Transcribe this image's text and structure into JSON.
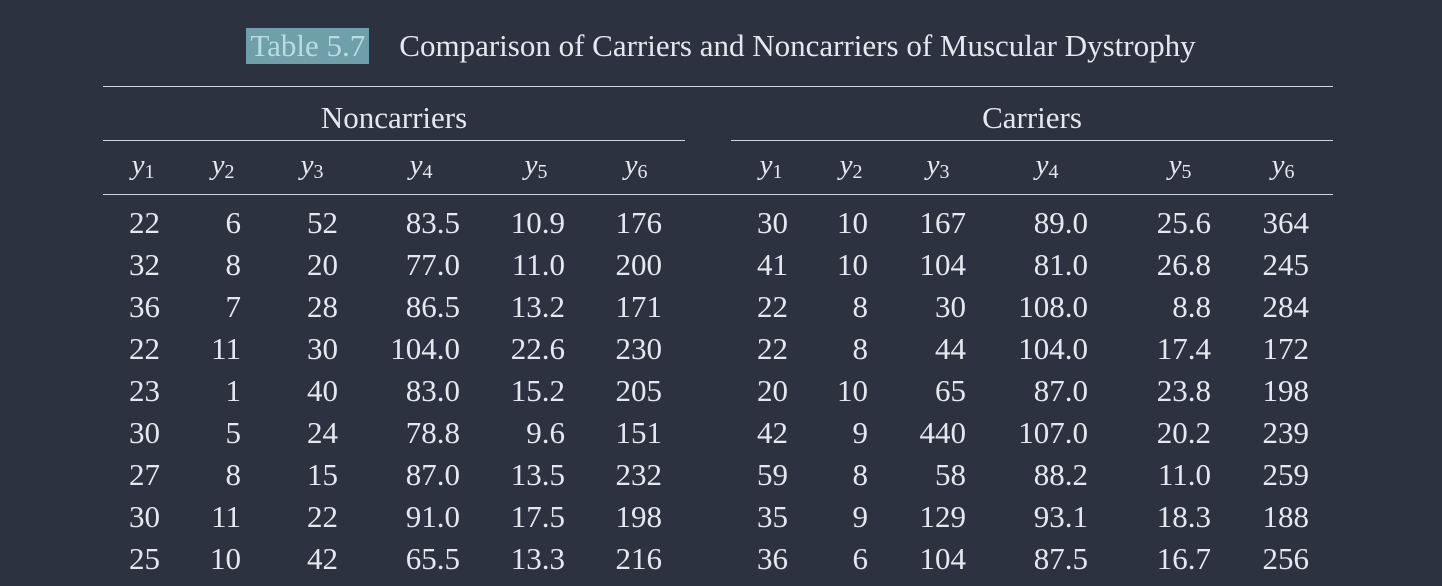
{
  "caption": {
    "label": "Table 5.7",
    "title": "Comparison of Carriers and Noncarriers of Muscular Dystrophy"
  },
  "groups": {
    "noncarriers": "Noncarriers",
    "carriers": "Carriers"
  },
  "columns": [
    {
      "var": "y",
      "sub": "1"
    },
    {
      "var": "y",
      "sub": "2"
    },
    {
      "var": "y",
      "sub": "3"
    },
    {
      "var": "y",
      "sub": "4"
    },
    {
      "var": "y",
      "sub": "5"
    },
    {
      "var": "y",
      "sub": "6"
    }
  ],
  "rows": [
    [
      "22",
      "6",
      "52",
      "83.5",
      "10.9",
      "176",
      "30",
      "10",
      "167",
      "89.0",
      "25.6",
      "364"
    ],
    [
      "32",
      "8",
      "20",
      "77.0",
      "11.0",
      "200",
      "41",
      "10",
      "104",
      "81.0",
      "26.8",
      "245"
    ],
    [
      "36",
      "7",
      "28",
      "86.5",
      "13.2",
      "171",
      "22",
      "8",
      "30",
      "108.0",
      "8.8",
      "284"
    ],
    [
      "22",
      "11",
      "30",
      "104.0",
      "22.6",
      "230",
      "22",
      "8",
      "44",
      "104.0",
      "17.4",
      "172"
    ],
    [
      "23",
      "1",
      "40",
      "83.0",
      "15.2",
      "205",
      "20",
      "10",
      "65",
      "87.0",
      "23.8",
      "198"
    ],
    [
      "30",
      "5",
      "24",
      "78.8",
      "9.6",
      "151",
      "42",
      "9",
      "440",
      "107.0",
      "20.2",
      "239"
    ],
    [
      "27",
      "8",
      "15",
      "87.0",
      "13.5",
      "232",
      "59",
      "8",
      "58",
      "88.2",
      "11.0",
      "259"
    ],
    [
      "30",
      "11",
      "22",
      "91.0",
      "17.5",
      "198",
      "35",
      "9",
      "129",
      "93.1",
      "18.3",
      "188"
    ],
    [
      "25",
      "10",
      "42",
      "65.5",
      "13.3",
      "216",
      "36",
      "6",
      "104",
      "87.5",
      "16.7",
      "256"
    ]
  ]
}
